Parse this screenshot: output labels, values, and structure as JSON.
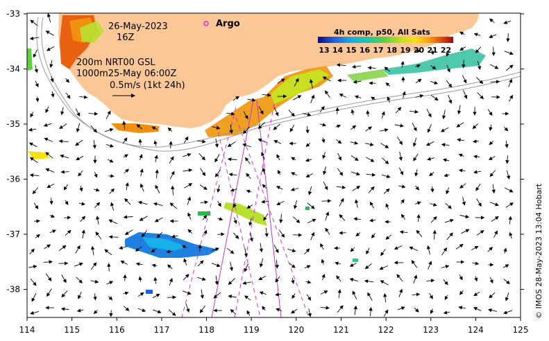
{
  "map": {
    "date_line": "26-May-2023",
    "hour_line": "16Z",
    "legend_line_1": "200m  NRT00 GSL",
    "legend_line_2": "1000m25-May 06:00Z",
    "scale_label": "0.5m/s (1kt 24h)",
    "argo_label": "Argo",
    "colorbar_title": "4h comp, p50, All Sats",
    "colorbar_ticks": [
      "13",
      "14",
      "15",
      "16",
      "17",
      "18",
      "19",
      "20",
      "21",
      "22"
    ],
    "credit": "© IMOS 28-May-2023 13:04 Hobart",
    "x_ticks": [
      "114",
      "115",
      "116",
      "117",
      "118",
      "119",
      "120",
      "121",
      "122",
      "123",
      "124",
      "125"
    ],
    "y_ticks": [
      "-33",
      "-34",
      "-35",
      "-36",
      "-37",
      "-38"
    ],
    "land_color": "#fbc796",
    "argo_color": "#e020e0",
    "track_color": "#cc33cc"
  }
}
